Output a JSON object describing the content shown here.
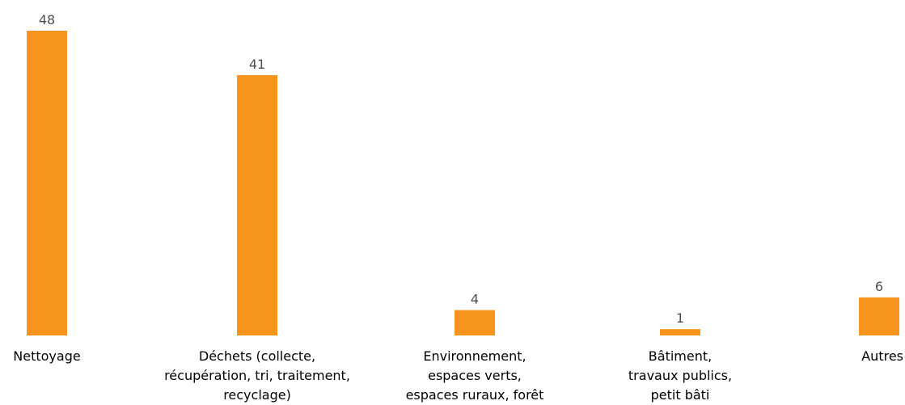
{
  "chart_data": {
    "type": "bar",
    "title": "",
    "xlabel": "",
    "ylabel": "",
    "categories": [
      [
        "Nettoyage"
      ],
      [
        "Déchets (collecte,",
        "récupération, tri, traitement,",
        "recyclage)"
      ],
      [
        "Environnement,",
        "espaces verts,",
        "espaces ruraux, forêt"
      ],
      [
        "Bâtiment,",
        "travaux publics,",
        "petit bâti"
      ],
      [
        "Autres"
      ]
    ],
    "values": [
      48,
      41,
      4,
      1,
      6
    ],
    "ylim": [
      0,
      48
    ],
    "grid": false,
    "legend": "none",
    "bar_color": "#f7941d"
  }
}
